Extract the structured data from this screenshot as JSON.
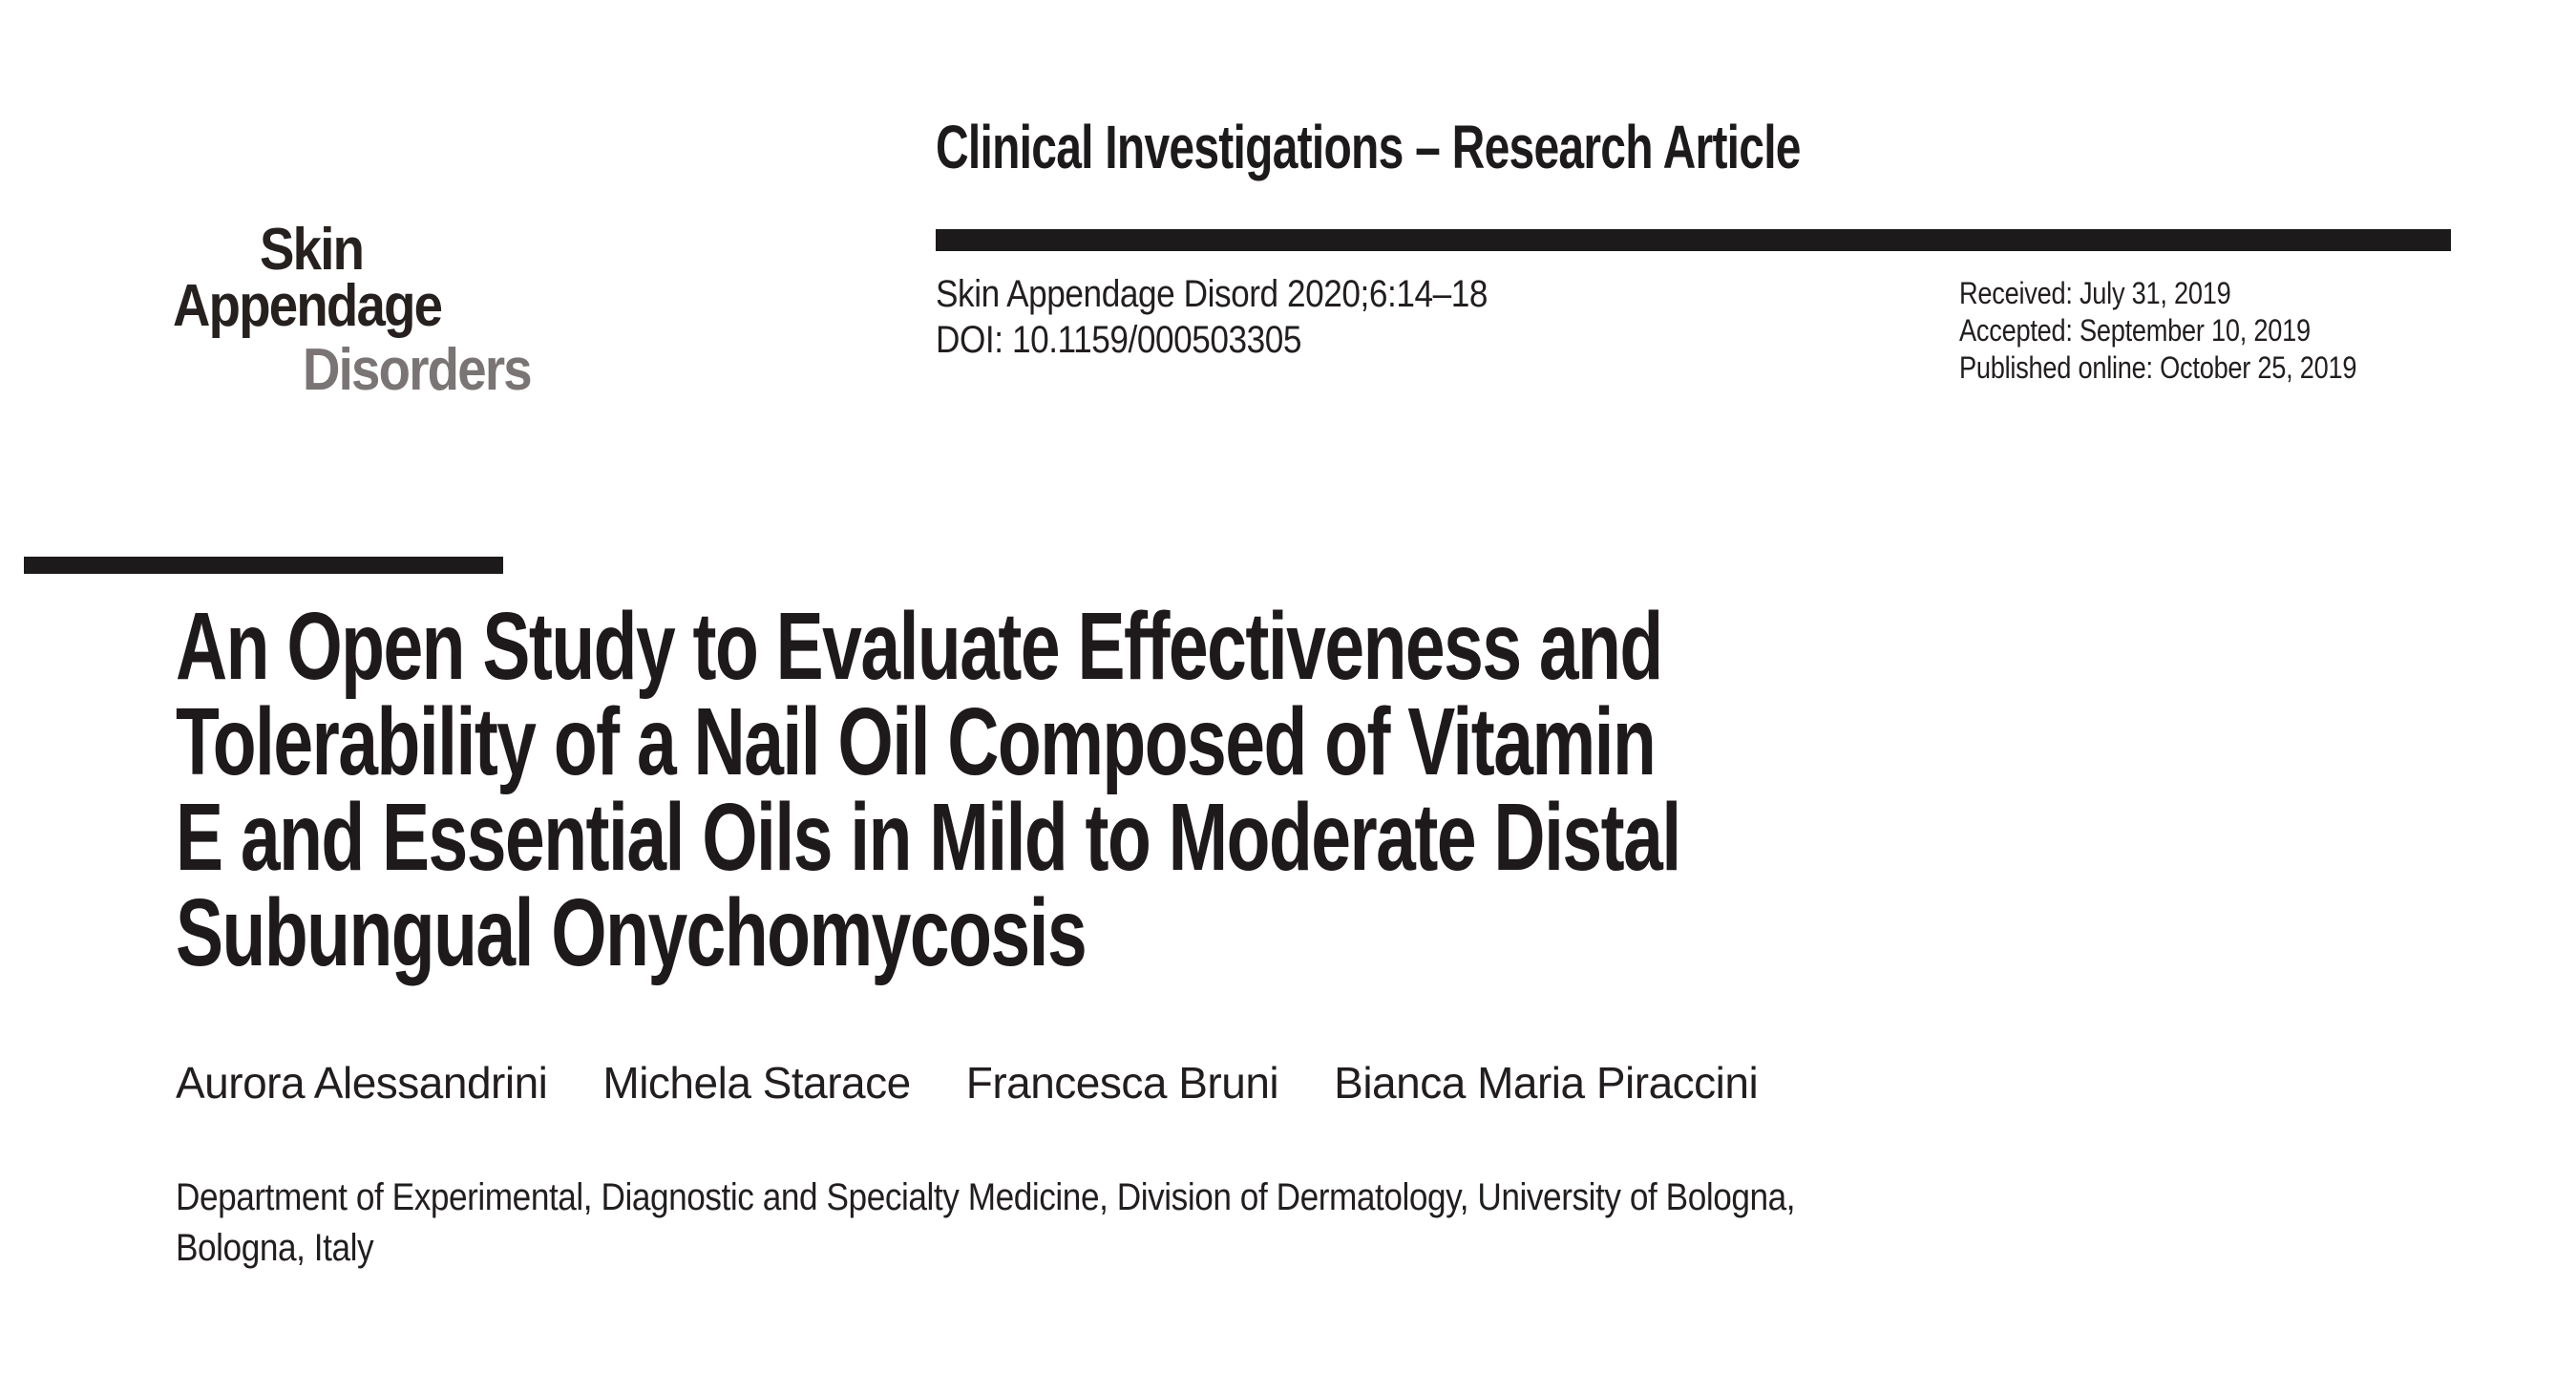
{
  "page": {
    "background_color": "#ffffff",
    "ink_color": "#1e1a1b",
    "logo_gray_color": "#7a7475"
  },
  "journal_logo": {
    "line1": "Skin",
    "line2": "Appendage",
    "line3": "Disorders"
  },
  "header": {
    "section_label": "Clinical Investigations – Research Article"
  },
  "citation": {
    "journal_ref": "Skin Appendage Disord 2020;6:14–18",
    "doi": "DOI: 10.1159/000503305"
  },
  "dates": {
    "received": "Received: July 31, 2019",
    "accepted": "Accepted: September 10, 2019",
    "published": "Published online: October 25, 2019"
  },
  "article": {
    "title_lines": [
      "An Open Study to Evaluate Effectiveness and",
      "Tolerability of a Nail Oil Composed of Vitamin",
      "E and Essential Oils in Mild to Moderate Distal",
      "Subungual Onychomycosis"
    ],
    "authors": [
      "Aurora Alessandrini",
      "Michela Starace",
      "Francesca Bruni",
      "Bianca Maria Piraccini"
    ],
    "affiliation_lines": [
      "Department of Experimental, Diagnostic and Specialty Medicine, Division of Dermatology, University of Bologna,",
      "Bologna, Italy"
    ]
  }
}
